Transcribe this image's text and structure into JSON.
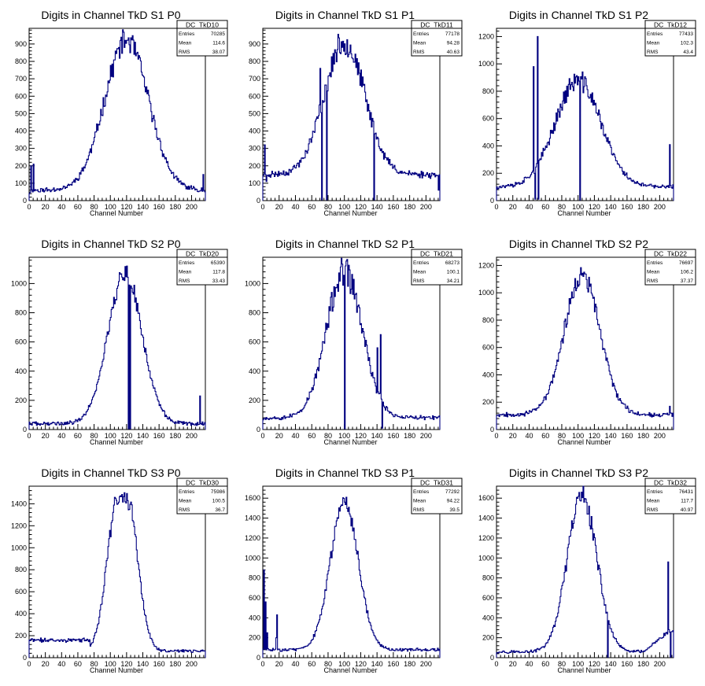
{
  "line_color": "#000080",
  "frame_color": "#000000",
  "chart_data": [
    {
      "type": "histogram",
      "title": "Digits in Channel TkD S1 P0",
      "xlabel": "Channel Number",
      "ylabel": "",
      "xlim": [
        0,
        217
      ],
      "ylim": [
        0,
        990
      ],
      "xticks": [
        0,
        20,
        40,
        60,
        80,
        100,
        120,
        140,
        160,
        180,
        200
      ],
      "yticks": [
        100,
        200,
        300,
        400,
        500,
        600,
        700,
        800,
        900
      ],
      "stats": {
        "name": "DC_TkD10",
        "entries": "70285",
        "mean": "114.6",
        "rms": "38.07"
      },
      "profile": {
        "kind": "gauss",
        "mean": 120,
        "sigma": 27,
        "peak": 920,
        "base": 60,
        "noise": 0.07,
        "seed": 11
      },
      "spikes": [
        [
          0,
          40
        ],
        [
          2,
          200
        ],
        [
          5,
          210
        ],
        [
          214,
          150
        ]
      ]
    },
    {
      "type": "histogram",
      "title": "Digits in Channel TkD S1 P1",
      "xlabel": "Channel Number",
      "ylabel": "",
      "xlim": [
        0,
        217
      ],
      "ylim": [
        0,
        990
      ],
      "xticks": [
        0,
        20,
        40,
        60,
        80,
        100,
        120,
        140,
        160,
        180,
        200
      ],
      "yticks": [
        100,
        200,
        300,
        400,
        500,
        600,
        700,
        800,
        900
      ],
      "stats": {
        "name": "DC_TkD11",
        "entries": "77178",
        "mean": "94.28",
        "rms": "40.63"
      },
      "profile": {
        "kind": "gauss",
        "mean": 100,
        "sigma": 25,
        "peak": 910,
        "base": 150,
        "noise": 0.08,
        "seed": 23
      },
      "spikes": [
        [
          2,
          320
        ],
        [
          4,
          110
        ],
        [
          70,
          760
        ],
        [
          72,
          5
        ],
        [
          78,
          5
        ],
        [
          136,
          5
        ],
        [
          215,
          60
        ]
      ]
    },
    {
      "type": "histogram",
      "title": "Digits in Channel TkD S1 P2",
      "xlabel": "Channel Number",
      "ylabel": "",
      "xlim": [
        0,
        217
      ],
      "ylim": [
        0,
        1260
      ],
      "xticks": [
        0,
        20,
        40,
        60,
        80,
        100,
        120,
        140,
        160,
        180,
        200
      ],
      "yticks": [
        200,
        400,
        600,
        800,
        1000,
        1200
      ],
      "stats": {
        "name": "DC_TkD12",
        "entries": "77433",
        "mean": "102.3",
        "rms": "43.4"
      },
      "profile": {
        "kind": "gauss",
        "mean": 100,
        "sigma": 28,
        "peak": 880,
        "base": 100,
        "noise": 0.08,
        "seed": 37
      },
      "spikes": [
        [
          45,
          980
        ],
        [
          47,
          10
        ],
        [
          50,
          1200
        ],
        [
          51,
          10
        ],
        [
          102,
          5
        ],
        [
          212,
          410
        ]
      ]
    },
    {
      "type": "histogram",
      "title": "Digits in Channel TkD S2 P0",
      "xlabel": "Channel Number",
      "ylabel": "",
      "xlim": [
        0,
        217
      ],
      "ylim": [
        0,
        1180
      ],
      "xticks": [
        0,
        20,
        40,
        60,
        80,
        100,
        120,
        140,
        160,
        180,
        200
      ],
      "yticks": [
        200,
        400,
        600,
        800,
        1000
      ],
      "stats": {
        "name": "DC_TkD20",
        "entries": "65390",
        "mean": "117.8",
        "rms": "33.43"
      },
      "profile": {
        "kind": "gauss",
        "mean": 118,
        "sigma": 21,
        "peak": 1070,
        "base": 40,
        "noise": 0.06,
        "seed": 41
      },
      "spikes": [
        [
          120,
          1120
        ],
        [
          122,
          5
        ],
        [
          124,
          5
        ],
        [
          210,
          230
        ]
      ]
    },
    {
      "type": "histogram",
      "title": "Digits in Channel TkD S2 P1",
      "xlabel": "Channel Number",
      "ylabel": "",
      "xlim": [
        0,
        217
      ],
      "ylim": [
        0,
        1180
      ],
      "xticks": [
        0,
        20,
        40,
        60,
        80,
        100,
        120,
        140,
        160,
        180,
        200
      ],
      "yticks": [
        200,
        400,
        600,
        800,
        1000
      ],
      "stats": {
        "name": "DC_TkD21",
        "entries": "68273",
        "mean": "100.1",
        "rms": "34.21"
      },
      "profile": {
        "kind": "gauss",
        "mean": 100,
        "sigma": 22,
        "peak": 1080,
        "base": 80,
        "noise": 0.09,
        "seed": 53
      },
      "spikes": [
        [
          100,
          5
        ],
        [
          140,
          560
        ],
        [
          144,
          650
        ],
        [
          146,
          10
        ]
      ]
    },
    {
      "type": "histogram",
      "title": "Digits in Channel TkD S2 P2",
      "xlabel": "Channel Number",
      "ylabel": "",
      "xlim": [
        0,
        217
      ],
      "ylim": [
        0,
        1260
      ],
      "xticks": [
        0,
        20,
        40,
        60,
        80,
        100,
        120,
        140,
        160,
        180,
        200
      ],
      "yticks": [
        200,
        400,
        600,
        800,
        1000,
        1200
      ],
      "stats": {
        "name": "DC_TkD22",
        "entries": "76697",
        "mean": "106.2",
        "rms": "37.37"
      },
      "profile": {
        "kind": "gauss",
        "mean": 105,
        "sigma": 22,
        "peak": 1120,
        "base": 110,
        "noise": 0.07,
        "seed": 67
      },
      "spikes": [
        [
          212,
          170
        ]
      ]
    },
    {
      "type": "histogram",
      "title": "Digits in Channel TkD S3 P0",
      "xlabel": "Channel Number",
      "ylabel": "",
      "xlim": [
        0,
        217
      ],
      "ylim": [
        0,
        1560
      ],
      "xticks": [
        0,
        20,
        40,
        60,
        80,
        100,
        120,
        140,
        160,
        180,
        200
      ],
      "yticks": [
        200,
        400,
        600,
        800,
        1000,
        1200,
        1400
      ],
      "stats": {
        "name": "DC_TkD30",
        "entries": "75986",
        "mean": "100.5",
        "rms": "36.7"
      },
      "profile": {
        "kind": "plateau",
        "mean": 115,
        "sigma": 13,
        "half": 6,
        "peak": 1440,
        "base": 60,
        "lowshelf": 160,
        "shelfend": 75,
        "noise": 0.06,
        "seed": 71
      },
      "spikes": []
    },
    {
      "type": "histogram",
      "title": "Digits in Channel TkD S3 P1",
      "xlabel": "Channel Number",
      "ylabel": "",
      "xlim": [
        0,
        217
      ],
      "ylim": [
        0,
        1720
      ],
      "xticks": [
        0,
        20,
        40,
        60,
        80,
        100,
        120,
        140,
        160,
        180,
        200
      ],
      "yticks": [
        200,
        400,
        600,
        800,
        1000,
        1200,
        1400,
        1600
      ],
      "stats": {
        "name": "DC_TkD31",
        "entries": "77292",
        "mean": "94.22",
        "rms": "39.5"
      },
      "profile": {
        "kind": "gauss",
        "mean": 100,
        "sigma": 17,
        "peak": 1580,
        "base": 80,
        "noise": 0.06,
        "seed": 83
      },
      "spikes": [
        [
          1,
          880
        ],
        [
          3,
          560
        ],
        [
          5,
          250
        ],
        [
          16,
          200
        ],
        [
          17,
          430
        ]
      ]
    },
    {
      "type": "histogram",
      "title": "Digits in Channel TkD S3 P2",
      "xlabel": "Channel Number",
      "ylabel": "",
      "xlim": [
        0,
        217
      ],
      "ylim": [
        0,
        1720
      ],
      "xticks": [
        0,
        20,
        40,
        60,
        80,
        100,
        120,
        140,
        160,
        180,
        200
      ],
      "yticks": [
        200,
        400,
        600,
        800,
        1000,
        1200,
        1400,
        1600
      ],
      "stats": {
        "name": "DC_TkD32",
        "entries": "76431",
        "mean": "117.7",
        "rms": "40.97"
      },
      "profile": {
        "kind": "gauss",
        "mean": 105,
        "sigma": 18,
        "peak": 1630,
        "base": 60,
        "rise": [
          180,
          212,
          260
        ],
        "noise": 0.07,
        "seed": 97
      },
      "spikes": [
        [
          136,
          5
        ],
        [
          210,
          960
        ],
        [
          213,
          5
        ]
      ]
    }
  ]
}
